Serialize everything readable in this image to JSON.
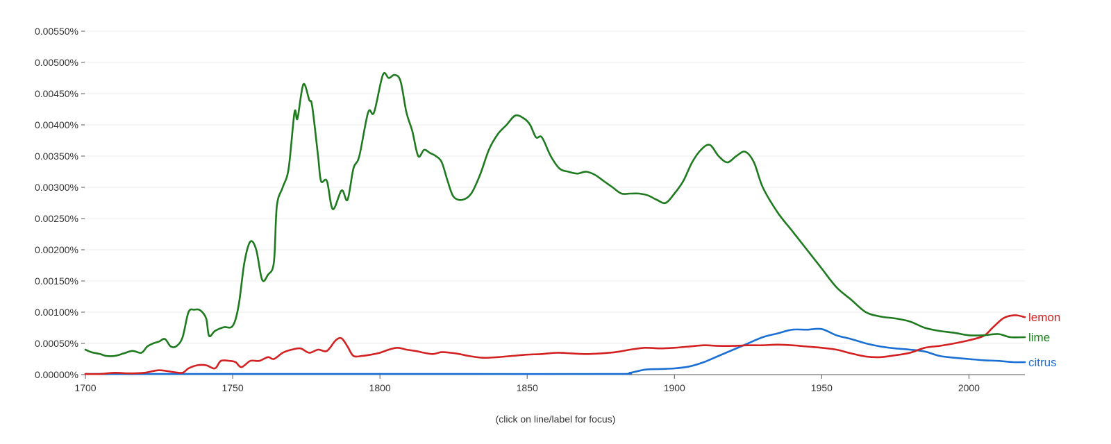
{
  "chart_data": {
    "type": "line",
    "xlim": [
      1700,
      2019
    ],
    "ylim": [
      0,
      0.0055
    ],
    "grid": true,
    "legend_placement": "right, at line ends",
    "footnote": "(click on line/label for focus)",
    "x_ticks": [
      {
        "value": 1700,
        "label": "1700"
      },
      {
        "value": 1750,
        "label": "1750"
      },
      {
        "value": 1800,
        "label": "1800"
      },
      {
        "value": 1850,
        "label": "1850"
      },
      {
        "value": 1900,
        "label": "1900"
      },
      {
        "value": 1950,
        "label": "1950"
      },
      {
        "value": 2000,
        "label": "2000"
      }
    ],
    "y_ticks": [
      {
        "value": 0,
        "label": "0.00000%"
      },
      {
        "value": 0.0005,
        "label": "0.00050%"
      },
      {
        "value": 0.001,
        "label": "0.00100%"
      },
      {
        "value": 0.0015,
        "label": "0.00150%"
      },
      {
        "value": 0.002,
        "label": "0.00200%"
      },
      {
        "value": 0.0025,
        "label": "0.00250%"
      },
      {
        "value": 0.003,
        "label": "0.00300%"
      },
      {
        "value": 0.0035,
        "label": "0.00350%"
      },
      {
        "value": 0.004,
        "label": "0.00400%"
      },
      {
        "value": 0.0045,
        "label": "0.00450%"
      },
      {
        "value": 0.005,
        "label": "0.00500%"
      },
      {
        "value": 0.0055,
        "label": "0.00550%"
      }
    ],
    "series": [
      {
        "name": "lime",
        "color": "#1e7a1e",
        "points": [
          [
            1700,
            0.0004
          ],
          [
            1702,
            0.00036
          ],
          [
            1705,
            0.00033
          ],
          [
            1707,
            0.0003
          ],
          [
            1710,
            0.0003
          ],
          [
            1713,
            0.00034
          ],
          [
            1716,
            0.00038
          ],
          [
            1719,
            0.00035
          ],
          [
            1721,
            0.00045
          ],
          [
            1723,
            0.0005
          ],
          [
            1725,
            0.00053
          ],
          [
            1727,
            0.00057
          ],
          [
            1729,
            0.00045
          ],
          [
            1731,
            0.00046
          ],
          [
            1733,
            0.0006
          ],
          [
            1735,
            0.001
          ],
          [
            1737,
            0.00104
          ],
          [
            1739,
            0.00103
          ],
          [
            1741,
            0.0009
          ],
          [
            1742,
            0.00062
          ],
          [
            1744,
            0.0007
          ],
          [
            1747,
            0.00076
          ],
          [
            1750,
            0.00078
          ],
          [
            1752,
            0.0011
          ],
          [
            1754,
            0.0018
          ],
          [
            1756,
            0.00213
          ],
          [
            1758,
            0.002
          ],
          [
            1760,
            0.00152
          ],
          [
            1762,
            0.0016
          ],
          [
            1764,
            0.0018
          ],
          [
            1765,
            0.0027
          ],
          [
            1767,
            0.003
          ],
          [
            1769,
            0.0033
          ],
          [
            1771,
            0.0042
          ],
          [
            1772,
            0.0041
          ],
          [
            1774,
            0.00465
          ],
          [
            1776,
            0.0044
          ],
          [
            1777,
            0.0043
          ],
          [
            1779,
            0.0035
          ],
          [
            1780,
            0.0031
          ],
          [
            1782,
            0.0031
          ],
          [
            1784,
            0.00265
          ],
          [
            1787,
            0.00295
          ],
          [
            1789,
            0.0028
          ],
          [
            1791,
            0.0033
          ],
          [
            1793,
            0.0035
          ],
          [
            1796,
            0.0042
          ],
          [
            1798,
            0.0042
          ],
          [
            1801,
            0.0048
          ],
          [
            1803,
            0.00475
          ],
          [
            1805,
            0.0048
          ],
          [
            1807,
            0.0047
          ],
          [
            1809,
            0.0042
          ],
          [
            1811,
            0.0039
          ],
          [
            1813,
            0.0035
          ],
          [
            1815,
            0.0036
          ],
          [
            1817,
            0.00355
          ],
          [
            1819,
            0.0035
          ],
          [
            1821,
            0.0034
          ],
          [
            1823,
            0.0031
          ],
          [
            1825,
            0.00285
          ],
          [
            1828,
            0.0028
          ],
          [
            1831,
            0.0029
          ],
          [
            1834,
            0.0032
          ],
          [
            1837,
            0.0036
          ],
          [
            1840,
            0.00385
          ],
          [
            1843,
            0.004
          ],
          [
            1846,
            0.00415
          ],
          [
            1849,
            0.0041
          ],
          [
            1851,
            0.004
          ],
          [
            1853,
            0.0038
          ],
          [
            1855,
            0.0038
          ],
          [
            1858,
            0.0035
          ],
          [
            1861,
            0.0033
          ],
          [
            1864,
            0.00325
          ],
          [
            1867,
            0.00322
          ],
          [
            1870,
            0.00325
          ],
          [
            1873,
            0.0032
          ],
          [
            1876,
            0.0031
          ],
          [
            1879,
            0.003
          ],
          [
            1882,
            0.0029
          ],
          [
            1885,
            0.0029
          ],
          [
            1888,
            0.0029
          ],
          [
            1891,
            0.00287
          ],
          [
            1894,
            0.0028
          ],
          [
            1897,
            0.00275
          ],
          [
            1900,
            0.0029
          ],
          [
            1903,
            0.0031
          ],
          [
            1906,
            0.0034
          ],
          [
            1909,
            0.0036
          ],
          [
            1912,
            0.00368
          ],
          [
            1915,
            0.0035
          ],
          [
            1918,
            0.0034
          ],
          [
            1921,
            0.0035
          ],
          [
            1924,
            0.00357
          ],
          [
            1927,
            0.0034
          ],
          [
            1930,
            0.003
          ],
          [
            1935,
            0.0026
          ],
          [
            1940,
            0.0023
          ],
          [
            1945,
            0.002
          ],
          [
            1950,
            0.0017
          ],
          [
            1955,
            0.0014
          ],
          [
            1960,
            0.0012
          ],
          [
            1965,
            0.001
          ],
          [
            1970,
            0.00093
          ],
          [
            1975,
            0.0009
          ],
          [
            1980,
            0.00085
          ],
          [
            1985,
            0.00075
          ],
          [
            1990,
            0.0007
          ],
          [
            1995,
            0.00067
          ],
          [
            2000,
            0.00063
          ],
          [
            2005,
            0.00063
          ],
          [
            2010,
            0.00065
          ],
          [
            2014,
            0.0006
          ],
          [
            2019,
            0.0006
          ]
        ]
      },
      {
        "name": "lemon",
        "color": "#d32020",
        "points": [
          [
            1700,
            1e-05
          ],
          [
            1705,
            1e-05
          ],
          [
            1710,
            3e-05
          ],
          [
            1715,
            2e-05
          ],
          [
            1720,
            3e-05
          ],
          [
            1725,
            7e-05
          ],
          [
            1730,
            4e-05
          ],
          [
            1733,
            3e-05
          ],
          [
            1735,
            0.0001
          ],
          [
            1738,
            0.00015
          ],
          [
            1741,
            0.00015
          ],
          [
            1744,
            0.0001
          ],
          [
            1746,
            0.00022
          ],
          [
            1749,
            0.00022
          ],
          [
            1751,
            0.0002
          ],
          [
            1753,
            0.00012
          ],
          [
            1756,
            0.00022
          ],
          [
            1759,
            0.00022
          ],
          [
            1762,
            0.00028
          ],
          [
            1764,
            0.00025
          ],
          [
            1767,
            0.00035
          ],
          [
            1770,
            0.0004
          ],
          [
            1773,
            0.00042
          ],
          [
            1776,
            0.00035
          ],
          [
            1779,
            0.0004
          ],
          [
            1782,
            0.00038
          ],
          [
            1785,
            0.00055
          ],
          [
            1787,
            0.00058
          ],
          [
            1789,
            0.00045
          ],
          [
            1791,
            0.0003
          ],
          [
            1794,
            0.0003
          ],
          [
            1797,
            0.00032
          ],
          [
            1800,
            0.00035
          ],
          [
            1803,
            0.0004
          ],
          [
            1806,
            0.00043
          ],
          [
            1809,
            0.0004
          ],
          [
            1812,
            0.00038
          ],
          [
            1815,
            0.00035
          ],
          [
            1818,
            0.00033
          ],
          [
            1821,
            0.00036
          ],
          [
            1824,
            0.00035
          ],
          [
            1827,
            0.00033
          ],
          [
            1830,
            0.0003
          ],
          [
            1835,
            0.00027
          ],
          [
            1840,
            0.00028
          ],
          [
            1845,
            0.0003
          ],
          [
            1850,
            0.00032
          ],
          [
            1855,
            0.00033
          ],
          [
            1860,
            0.00035
          ],
          [
            1865,
            0.00034
          ],
          [
            1870,
            0.00033
          ],
          [
            1875,
            0.00034
          ],
          [
            1880,
            0.00036
          ],
          [
            1885,
            0.0004
          ],
          [
            1890,
            0.00043
          ],
          [
            1895,
            0.00042
          ],
          [
            1900,
            0.00043
          ],
          [
            1905,
            0.00045
          ],
          [
            1910,
            0.00047
          ],
          [
            1915,
            0.00046
          ],
          [
            1920,
            0.00046
          ],
          [
            1925,
            0.00047
          ],
          [
            1930,
            0.00047
          ],
          [
            1935,
            0.00048
          ],
          [
            1940,
            0.00047
          ],
          [
            1945,
            0.00045
          ],
          [
            1950,
            0.00043
          ],
          [
            1955,
            0.0004
          ],
          [
            1960,
            0.00034
          ],
          [
            1965,
            0.00029
          ],
          [
            1970,
            0.00028
          ],
          [
            1975,
            0.00031
          ],
          [
            1980,
            0.00035
          ],
          [
            1985,
            0.00043
          ],
          [
            1990,
            0.00046
          ],
          [
            1995,
            0.0005
          ],
          [
            2000,
            0.00055
          ],
          [
            2005,
            0.00062
          ],
          [
            2008,
            0.00075
          ],
          [
            2011,
            0.00088
          ],
          [
            2013,
            0.00093
          ],
          [
            2016,
            0.00095
          ],
          [
            2019,
            0.00092
          ]
        ]
      },
      {
        "name": "citrus",
        "color": "#1a6fd4",
        "points": [
          [
            1700,
            1e-05
          ],
          [
            1750,
            1e-05
          ],
          [
            1800,
            1e-05
          ],
          [
            1830,
            1e-05
          ],
          [
            1880,
            1e-05
          ],
          [
            1885,
            3e-05
          ],
          [
            1890,
            8e-05
          ],
          [
            1895,
            9e-05
          ],
          [
            1900,
            0.0001
          ],
          [
            1905,
            0.00013
          ],
          [
            1910,
            0.0002
          ],
          [
            1915,
            0.0003
          ],
          [
            1920,
            0.0004
          ],
          [
            1925,
            0.0005
          ],
          [
            1930,
            0.0006
          ],
          [
            1935,
            0.00066
          ],
          [
            1940,
            0.00072
          ],
          [
            1945,
            0.00072
          ],
          [
            1950,
            0.00073
          ],
          [
            1955,
            0.00063
          ],
          [
            1960,
            0.00057
          ],
          [
            1965,
            0.0005
          ],
          [
            1970,
            0.00045
          ],
          [
            1975,
            0.00042
          ],
          [
            1980,
            0.0004
          ],
          [
            1985,
            0.00037
          ],
          [
            1990,
            0.0003
          ],
          [
            1995,
            0.00027
          ],
          [
            2000,
            0.00025
          ],
          [
            2005,
            0.00023
          ],
          [
            2010,
            0.00022
          ],
          [
            2015,
            0.0002
          ],
          [
            2019,
            0.0002
          ]
        ]
      }
    ]
  }
}
